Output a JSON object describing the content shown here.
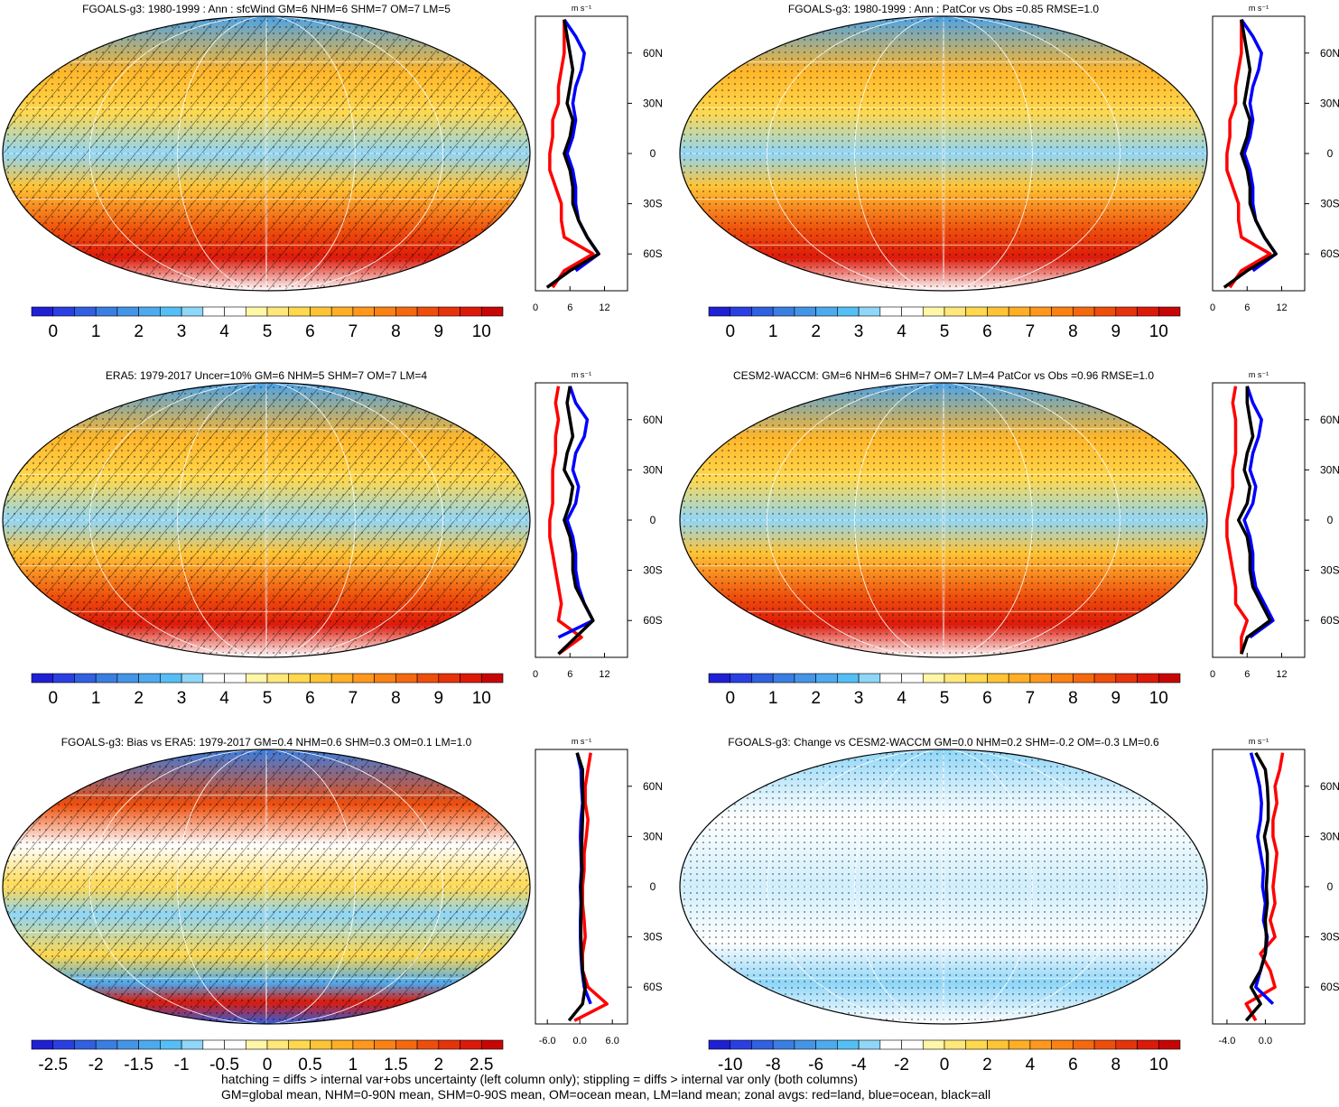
{
  "palette": [
    "#1f1fd4",
    "#2a3fe2",
    "#3160e0",
    "#3a7ee2",
    "#4595e6",
    "#4daaef",
    "#55bff5",
    "#8fd6f8",
    "#ffffff",
    "#ffffff",
    "#fff6a8",
    "#ffe77a",
    "#ffd84d",
    "#ffc435",
    "#ffae26",
    "#ff981c",
    "#fa8114",
    "#f4690f",
    "#ee4e0c",
    "#e6330b",
    "#dd1a0a",
    "#c80505"
  ],
  "footer": [
    "hatching = diffs > internal var+obs uncertainty (left column only); stippling = diffs > internal var only (both columns)",
    "GM=global mean, NHM=0-90N mean, SHM=0-90S mean, OM=ocean mean, LM=land mean; zonal avgs: red=land, blue=ocean, black=all"
  ],
  "chart_data": [
    {
      "type": "map",
      "title": "FGOALS-g3: 1980-1999 : Ann : sfcWind GM=6 NHM=6 SHM=7 OM=7 LM=5",
      "hatching": true,
      "colorbar": {
        "lim": [
          -0.5,
          10.5
        ],
        "ticks": [
          0,
          1,
          2,
          3,
          4,
          5,
          6,
          7,
          8,
          9,
          10
        ]
      },
      "zonal": {
        "type": "line",
        "unit": "m s⁻¹",
        "lat": [
          -80,
          -70,
          -60,
          -50,
          -40,
          -30,
          -20,
          -10,
          0,
          10,
          20,
          30,
          40,
          50,
          60,
          70,
          80
        ],
        "xlim": [
          0,
          16
        ],
        "xticks": [
          0,
          6,
          12
        ],
        "ylim": [
          -82,
          82
        ],
        "yticks": [
          {
            "value": -60,
            "label": "60S"
          },
          {
            "value": -30,
            "label": "30S"
          },
          0,
          {
            "value": 30,
            "label": "30N"
          },
          {
            "value": 60,
            "label": "60N"
          }
        ],
        "series": [
          {
            "name": "land",
            "color": "#ff0000",
            "values": [
              3,
              5,
              10,
              5,
              4.5,
              4.5,
              3.5,
              2.5,
              2.5,
              3,
              3,
              4,
              4,
              4.5,
              5,
              5,
              5
            ]
          },
          {
            "name": "ocean",
            "color": "#0000ff",
            "values": [
              null,
              7,
              11,
              9,
              7.5,
              7,
              7,
              6.5,
              5.5,
              6.5,
              7,
              6.5,
              7,
              8,
              8.5,
              7,
              5
            ]
          },
          {
            "name": "all",
            "color": "#000000",
            "values": [
              2,
              6,
              11,
              9,
              7.5,
              6.5,
              6.5,
              6,
              5,
              6,
              6.5,
              5.5,
              6,
              6.5,
              6,
              5.5,
              5
            ]
          }
        ]
      }
    },
    {
      "type": "map",
      "title": "FGOALS-g3: 1980-1999 : Ann : PatCor vs Obs =0.85 RMSE=1.0",
      "hatching": false,
      "colorbar": {
        "lim": [
          -0.5,
          10.5
        ],
        "ticks": [
          0,
          1,
          2,
          3,
          4,
          5,
          6,
          7,
          8,
          9,
          10
        ]
      },
      "zonal": {
        "type": "line",
        "unit": "m s⁻¹",
        "lat": [
          -80,
          -70,
          -60,
          -50,
          -40,
          -30,
          -20,
          -10,
          0,
          10,
          20,
          30,
          40,
          50,
          60,
          70,
          80
        ],
        "xlim": [
          0,
          16
        ],
        "xticks": [
          0,
          6,
          12
        ],
        "ylim": [
          -82,
          82
        ],
        "yticks": [
          {
            "value": -60,
            "label": "60S"
          },
          {
            "value": -30,
            "label": "30S"
          },
          0,
          {
            "value": 30,
            "label": "30N"
          },
          {
            "value": 60,
            "label": "60N"
          }
        ],
        "series": [
          {
            "name": "land",
            "color": "#ff0000",
            "values": [
              3,
              5,
              10,
              5,
              4.5,
              4.5,
              3.5,
              2.5,
              2.5,
              3,
              3,
              4,
              4,
              4.5,
              5,
              5,
              5
            ]
          },
          {
            "name": "ocean",
            "color": "#0000ff",
            "values": [
              null,
              7,
              11,
              9,
              7.5,
              7,
              7,
              6.5,
              5.5,
              6.5,
              7,
              6.5,
              7,
              8,
              8.5,
              7,
              5
            ]
          },
          {
            "name": "all",
            "color": "#000000",
            "values": [
              2,
              6,
              11,
              9,
              7.5,
              6.5,
              6.5,
              6,
              5,
              6,
              6.5,
              5.5,
              6,
              6.5,
              6,
              5.5,
              5
            ]
          }
        ]
      }
    },
    {
      "type": "map",
      "title": "ERA5: 1979-2017 Uncer=10% GM=6 NHM=5 SHM=7 OM=7 LM=4",
      "hatching": true,
      "colorbar": {
        "lim": [
          -0.5,
          10.5
        ],
        "ticks": [
          0,
          1,
          2,
          3,
          4,
          5,
          6,
          7,
          8,
          9,
          10
        ]
      },
      "zonal": {
        "type": "line",
        "unit": "m s⁻¹",
        "lat": [
          -80,
          -70,
          -60,
          -50,
          -40,
          -30,
          -20,
          -10,
          0,
          10,
          20,
          30,
          40,
          50,
          60,
          70,
          80
        ],
        "xlim": [
          0,
          16
        ],
        "xticks": [
          0,
          6,
          12
        ],
        "ylim": [
          -82,
          82
        ],
        "yticks": [
          {
            "value": -60,
            "label": "60S"
          },
          {
            "value": -30,
            "label": "30S"
          },
          0,
          {
            "value": 30,
            "label": "30N"
          },
          {
            "value": 60,
            "label": "60N"
          }
        ],
        "series": [
          {
            "name": "land",
            "color": "#ff0000",
            "values": [
              4,
              8,
              4,
              4.5,
              4,
              3.5,
              3,
              2.5,
              2.5,
              3,
              3,
              3,
              3.5,
              3.5,
              4,
              3.5,
              4
            ]
          },
          {
            "name": "ocean",
            "color": "#0000ff",
            "values": [
              null,
              4,
              10,
              8.5,
              7.5,
              7,
              7,
              6.5,
              5.5,
              7,
              7.5,
              6.5,
              7,
              8.5,
              9,
              7,
              6
            ]
          },
          {
            "name": "all",
            "color": "#000000",
            "values": [
              4,
              7,
              10,
              8.5,
              7,
              6.5,
              6.5,
              6,
              5,
              6,
              6.5,
              5,
              5.5,
              6.5,
              6,
              5.5,
              6
            ]
          }
        ]
      }
    },
    {
      "type": "map",
      "title": "CESM2-WACCM: GM=6 NHM=6 SHM=7 OM=7 LM=4 PatCor vs Obs =0.96 RMSE=1.0",
      "hatching": false,
      "colorbar": {
        "lim": [
          -0.5,
          10.5
        ],
        "ticks": [
          0,
          1,
          2,
          3,
          4,
          5,
          6,
          7,
          8,
          9,
          10
        ]
      },
      "zonal": {
        "type": "line",
        "unit": "m s⁻¹",
        "lat": [
          -80,
          -70,
          -60,
          -50,
          -40,
          -30,
          -20,
          -10,
          0,
          10,
          20,
          30,
          40,
          50,
          60,
          70,
          80
        ],
        "xlim": [
          0,
          16
        ],
        "xticks": [
          0,
          6,
          12
        ],
        "ylim": [
          -82,
          82
        ],
        "yticks": [
          {
            "value": -60,
            "label": "60S"
          },
          {
            "value": -30,
            "label": "30S"
          },
          0,
          {
            "value": 30,
            "label": "30N"
          },
          {
            "value": 60,
            "label": "60N"
          }
        ],
        "series": [
          {
            "name": "land",
            "color": "#ff0000",
            "values": [
              5,
              5,
              6,
              4,
              4,
              3.5,
              3,
              2.5,
              2.5,
              3,
              3.5,
              3.5,
              4,
              4,
              4,
              3.5,
              4
            ]
          },
          {
            "name": "ocean",
            "color": "#0000ff",
            "values": [
              null,
              6.5,
              10.5,
              9,
              7.5,
              7,
              7,
              6.5,
              5.5,
              7,
              7.5,
              6.5,
              7,
              8,
              8.5,
              7,
              6
            ]
          },
          {
            "name": "all",
            "color": "#000000",
            "values": [
              5,
              6,
              10,
              8.5,
              7,
              6.5,
              6.5,
              6,
              4.5,
              6,
              6.5,
              5.5,
              6,
              7,
              6.5,
              6,
              6
            ]
          }
        ]
      }
    },
    {
      "type": "map",
      "title": "FGOALS-g3: Bias vs ERA5: 1979-2017 GM=0.4 NHM=0.6 SHM=0.3 OM=0.1 LM=1.0",
      "hatching": true,
      "colorbar": {
        "lim": [
          -2.75,
          2.75
        ],
        "ticks": [
          -2.5,
          -2,
          -1.5,
          -1,
          -0.5,
          0,
          0.5,
          1,
          1.5,
          2,
          2.5
        ]
      },
      "zonal": {
        "type": "line",
        "unit": "m s⁻¹",
        "lat": [
          -80,
          -70,
          -60,
          -50,
          -40,
          -30,
          -20,
          -10,
          0,
          10,
          20,
          30,
          40,
          50,
          60,
          70,
          80
        ],
        "xlim": [
          -8.2,
          8.8
        ],
        "xticks": [
          {
            "value": -6,
            "label": "-6.0"
          },
          {
            "value": 0,
            "label": "0.0"
          },
          {
            "value": 6,
            "label": "6.0"
          }
        ],
        "ylim": [
          -82,
          82
        ],
        "yticks": [
          {
            "value": -60,
            "label": "60S"
          },
          {
            "value": -30,
            "label": "30S"
          },
          0,
          {
            "value": 30,
            "label": "30N"
          },
          {
            "value": 60,
            "label": "60N"
          }
        ],
        "series": [
          {
            "name": "land",
            "color": "#ff0000",
            "values": [
              -1,
              5,
              1.5,
              0.5,
              0.5,
              1,
              0.8,
              0.5,
              0.5,
              0.8,
              0.8,
              1.2,
              1.5,
              1,
              1,
              1.5,
              2
            ]
          },
          {
            "name": "ocean",
            "color": "#0000ff",
            "values": [
              null,
              2,
              0.8,
              0.4,
              0.2,
              0.1,
              0.1,
              0.2,
              0.1,
              0.3,
              0.2,
              0.1,
              0.2,
              0.5,
              0.3,
              0.2,
              -0.5
            ]
          },
          {
            "name": "all",
            "color": "#000000",
            "values": [
              -2,
              0.5,
              1,
              0.5,
              0.3,
              0.2,
              0.2,
              0.3,
              0.2,
              0.4,
              0.3,
              0.4,
              0.5,
              0.6,
              0.5,
              0.5,
              -0.5
            ]
          }
        ]
      }
    },
    {
      "type": "map",
      "title": "FGOALS-g3: Change vs CESM2-WACCM GM=0.0 NHM=0.2 SHM=-0.2 OM=-0.3 LM=0.6",
      "hatching": false,
      "colorbar": {
        "lim": [
          -11,
          11
        ],
        "ticks": [
          -10,
          -8,
          -6,
          -4,
          -2,
          0,
          2,
          4,
          6,
          8,
          10
        ]
      },
      "zonal": {
        "type": "line",
        "unit": "m s⁻¹",
        "lat": [
          -80,
          -70,
          -60,
          -50,
          -40,
          -30,
          -20,
          -10,
          0,
          10,
          20,
          30,
          40,
          50,
          60,
          70,
          80
        ],
        "xlim": [
          -5.5,
          4.1
        ],
        "xticks": [
          {
            "value": -4,
            "label": "-4.0"
          },
          {
            "value": 0,
            "label": "0.0"
          }
        ],
        "ylim": [
          -82,
          82
        ],
        "yticks": [
          {
            "value": -60,
            "label": "60S"
          },
          {
            "value": -30,
            "label": "30S"
          },
          0,
          {
            "value": 30,
            "label": "30N"
          },
          {
            "value": 60,
            "label": "60N"
          }
        ],
        "series": [
          {
            "name": "land",
            "color": "#ff0000",
            "values": [
              -1,
              -2,
              1,
              0.5,
              -0.5,
              1,
              0.5,
              1,
              0.8,
              1,
              1.2,
              0.8,
              0.8,
              1.2,
              1,
              1.5,
              1.8
            ]
          },
          {
            "name": "ocean",
            "color": "#0000ff",
            "values": [
              null,
              0.8,
              -1,
              -0.5,
              0,
              0.2,
              -0.2,
              0,
              -0.3,
              -0.2,
              -0.5,
              -0.8,
              -0.5,
              -0.4,
              -0.6,
              -1,
              -1.5
            ]
          },
          {
            "name": "all",
            "color": "#000000",
            "values": [
              -2,
              -0.5,
              -1.5,
              -0.5,
              0,
              0.1,
              0,
              0.2,
              0.1,
              0.2,
              0.2,
              -0.1,
              0.3,
              0.3,
              0.2,
              0,
              -1
            ]
          }
        ]
      }
    }
  ]
}
